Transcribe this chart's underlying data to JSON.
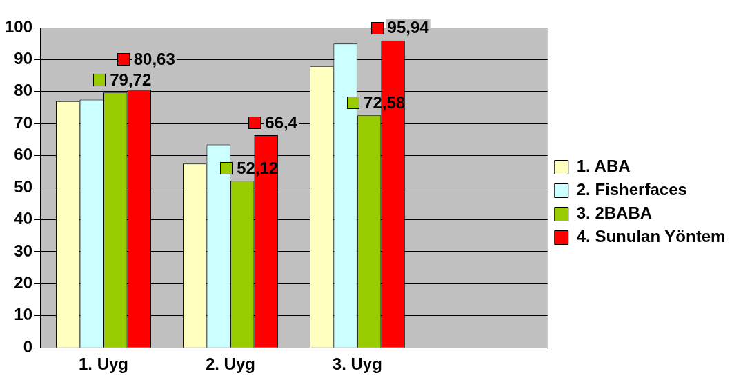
{
  "chart_data": {
    "type": "bar",
    "categories": [
      "1. Uyg",
      "2. Uyg",
      "3. Uyg",
      null
    ],
    "series": [
      {
        "name": "1. ABA",
        "color": "#ffffc0",
        "values": [
          77,
          57.5,
          88,
          null
        ]
      },
      {
        "name": "2. Fisherfaces",
        "color": "#ccffff",
        "values": [
          77.5,
          63.5,
          95,
          null
        ]
      },
      {
        "name": "3. 2BABA",
        "color": "#99cc00",
        "values": [
          79.72,
          52.12,
          72.58,
          null
        ],
        "value_labels": [
          "79,72",
          "52,12",
          "72,58",
          null
        ]
      },
      {
        "name": "4. Sunulan Yöntem",
        "color": "#ff0000",
        "values": [
          80.63,
          66.4,
          95.94,
          null
        ],
        "value_labels": [
          "80,63",
          "66,4",
          "95,94",
          null
        ]
      }
    ],
    "ylim": [
      0,
      100
    ],
    "yticks": [
      0,
      10,
      20,
      30,
      40,
      50,
      60,
      70,
      80,
      90,
      100
    ],
    "grid": "y",
    "legend": "right"
  }
}
